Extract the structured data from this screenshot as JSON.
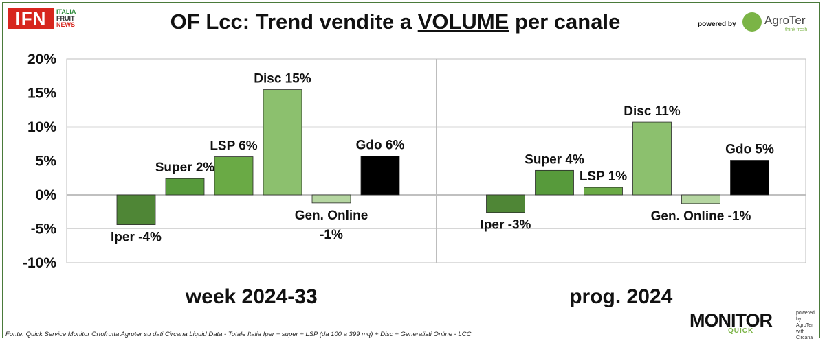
{
  "header": {
    "logo_ifn": "IFN",
    "logo_ifn_sub": [
      "ITALIA",
      "FRUIT",
      "NEWS"
    ],
    "title_pre": "OF Lcc: Trend vendite a ",
    "title_emph": "VOLUME",
    "title_post": " per canale",
    "powered_by": "powered by",
    "agroter_name": "AgroTer",
    "agroter_tag": "think fresh"
  },
  "chart_data": {
    "type": "bar",
    "title": "OF Lcc: Trend vendite a VOLUME per canale",
    "ylim": [
      -10,
      20
    ],
    "yticks": [
      20,
      15,
      10,
      5,
      0,
      -5,
      -10
    ],
    "ytick_labels": [
      "20%",
      "15%",
      "10%",
      "5%",
      "0%",
      "-5%",
      "-10%"
    ],
    "grid": true,
    "panels": [
      {
        "period": "week 2024-33",
        "categories": [
          "Iper",
          "Super",
          "LSP",
          "Disc",
          "Gen. Online",
          "Gdo"
        ],
        "values": [
          -4.4,
          2.4,
          5.6,
          15.5,
          -1.2,
          5.7
        ],
        "labels": [
          "Iper -4%",
          "Super 2%",
          "LSP 6%",
          "Disc 15%",
          "Gen. Online",
          "Gdo 6%"
        ],
        "labels_line2": [
          "",
          "",
          "",
          "",
          "-1%",
          ""
        ]
      },
      {
        "period": "prog. 2024",
        "categories": [
          "Iper",
          "Super",
          "LSP",
          "Disc",
          "Gen. Online",
          "Gdo"
        ],
        "values": [
          -2.6,
          3.6,
          1.1,
          10.7,
          -1.3,
          5.1
        ],
        "labels": [
          "Iper -3%",
          "Super 4%",
          "LSP 1%",
          "Disc 11%",
          "Gen. Online -1%",
          "Gdo 5%"
        ],
        "labels_line2": [
          "",
          "",
          "",
          "",
          "",
          ""
        ]
      }
    ],
    "colors": [
      "#4f8636",
      "#579a3b",
      "#6aaa45",
      "#8cc06e",
      "#b5d6a1",
      "#000000"
    ]
  },
  "footer": {
    "source": "Fonte: Quick Service Monitor Ortofrutta Agroter su dati Circana Liquid Data - Totale Italia Iper + super + LSP (da 100 a 399 mq) + Disc + Generalisti Online - LCC",
    "monitor_word": "MONITOR",
    "monitor_quick": "QUICK",
    "monitor_side": [
      "powered by",
      "AgroTer",
      "with",
      "Circana"
    ]
  }
}
